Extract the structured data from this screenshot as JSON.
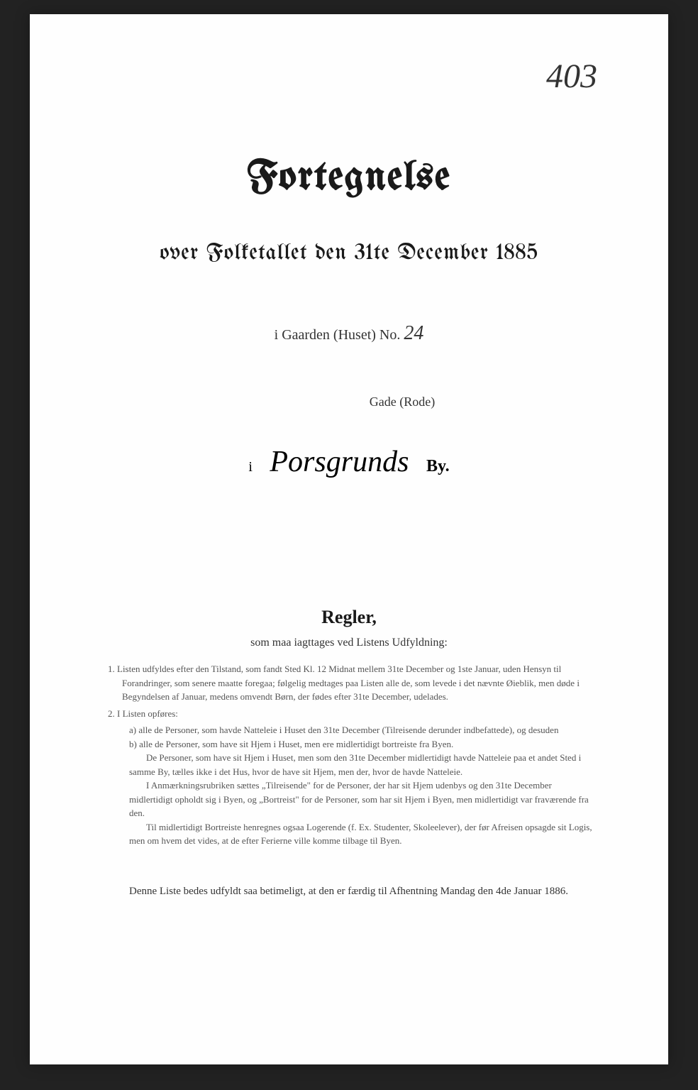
{
  "page_number": "403",
  "title": "Fortegnelse",
  "subtitle": "over Folketallet den 31te December 1885",
  "house_prefix": "i Gaarden (Huset) No.",
  "house_number": "24",
  "street_label": "Gade (Rode)",
  "city_prefix": "i",
  "city_name": "Porsgrunds",
  "city_suffix": "By.",
  "rules_heading": "Regler,",
  "rules_subheading": "som maa iagttages ved Listens Udfyldning:",
  "rule1": "1. Listen udfyldes efter den Tilstand, som fandt Sted Kl. 12 Midnat mellem 31te December og 1ste Januar, uden Hensyn til Forandringer, som senere maatte foregaa; følgelig medtages paa Listen alle de, som levede i det nævnte Øieblik, men døde i Begyndelsen af Januar, medens omvendt Børn, der fødes efter 31te December, udelades.",
  "rule2": "2. I Listen opføres:",
  "rule2a": "a) alle de Personer, som havde Natteleie i Huset den 31te December (Tilreisende derunder indbefattede), og desuden",
  "rule2b": "b) alle de Personer, som have sit Hjem i Huset, men ere midlertidigt bortreiste fra Byen.",
  "rules_para1": "De Personer, som have sit Hjem i Huset, men som den 31te December midlertidigt havde Natteleie paa et andet Sted i samme By, tælles ikke i det Hus, hvor de have sit Hjem, men der, hvor de havde Natteleie.",
  "rules_para2": "I Anmærkningsrubriken sættes „Tilreisende\" for de Personer, der har sit Hjem udenbys og den 31te December midlertidigt opholdt sig i Byen, og „Bortreist\" for de Personer, som har sit Hjem i Byen, men midlertidigt var fraværende fra den.",
  "rules_para3": "Til midlertidigt Bortreiste henregnes ogsaa Logerende (f. Ex. Studenter, Skoleelever), der før Afreisen opsagde sit Logis, men om hvem det vides, at de efter Ferierne ville komme tilbage til Byen.",
  "footer": "Denne Liste bedes udfyldt saa betimeligt, at den er færdig til Afhentning Mandag den 4de Januar 1886."
}
